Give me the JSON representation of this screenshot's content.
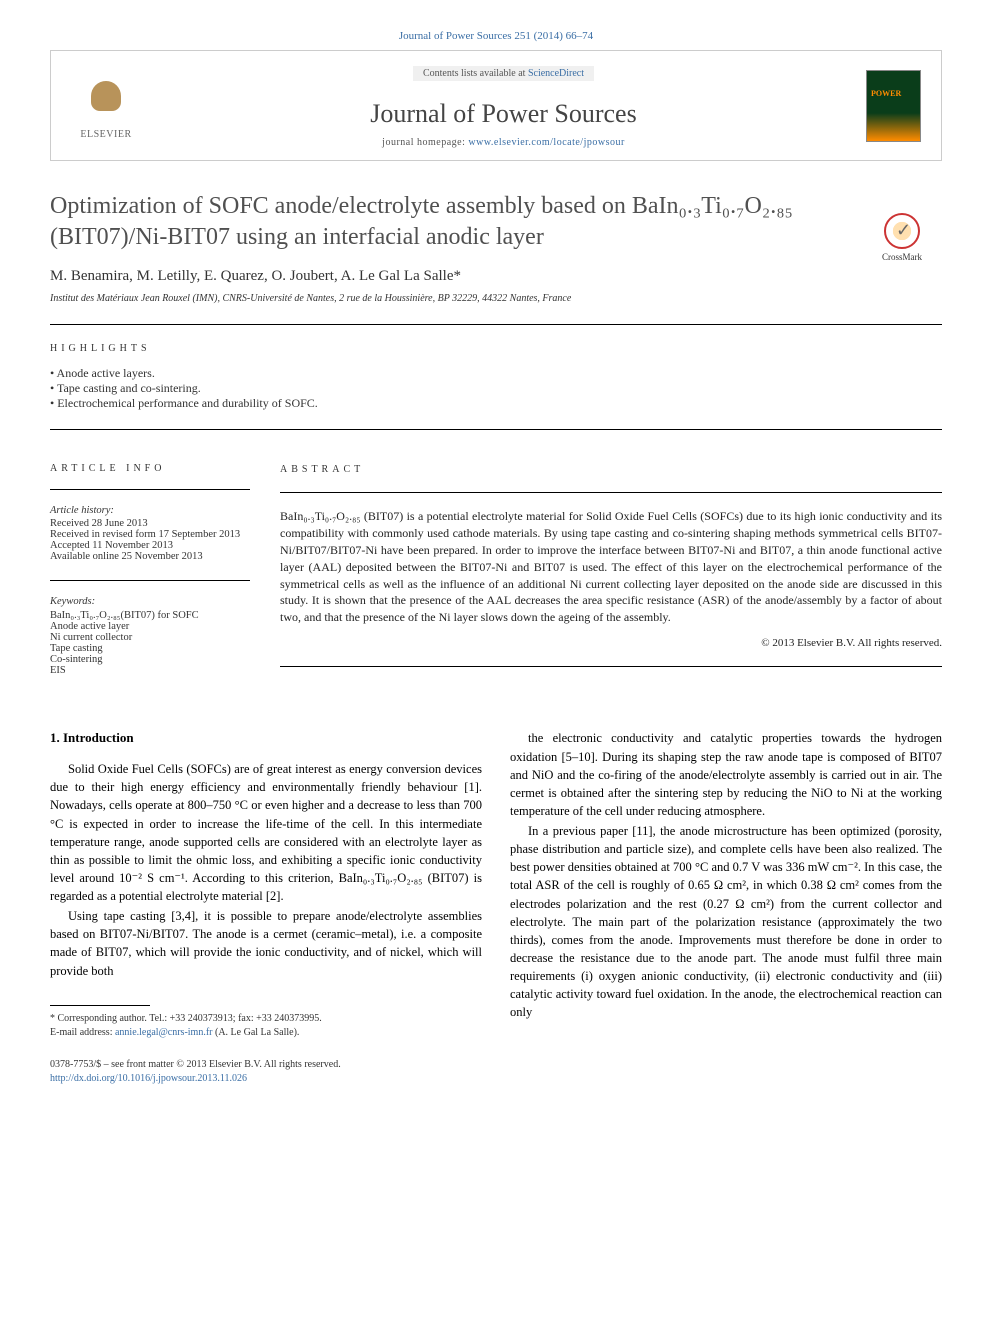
{
  "citation": "Journal of Power Sources 251 (2014) 66–74",
  "header": {
    "contents_prefix": "Contents lists available at ",
    "contents_link": "ScienceDirect",
    "journal": "Journal of Power Sources",
    "homepage_prefix": "journal homepage: ",
    "homepage": "www.elsevier.com/locate/jpowsour",
    "elsevier": "ELSEVIER"
  },
  "crossmark": "CrossMark",
  "title": "Optimization of SOFC anode/electrolyte assembly based on BaIn₀.₃Ti₀.₇O₂.₈₅ (BIT07)/Ni-BIT07 using an interfacial anodic layer",
  "authors": "M. Benamira, M. Letilly, E. Quarez, O. Joubert, A. Le Gal La Salle*",
  "affiliation": "Institut des Matériaux Jean Rouxel (IMN), CNRS-Université de Nantes, 2 rue de la Houssinière, BP 32229, 44322 Nantes, France",
  "labels": {
    "highlights": "HIGHLIGHTS",
    "article_info": "ARTICLE INFO",
    "abstract": "ABSTRACT"
  },
  "highlights": [
    "Anode active layers.",
    "Tape casting and co-sintering.",
    "Electrochemical performance and durability of SOFC."
  ],
  "article_info": {
    "history_label": "Article history:",
    "received": "Received 28 June 2013",
    "revised": "Received in revised form 17 September 2013",
    "accepted": "Accepted 11 November 2013",
    "online": "Available online 25 November 2013",
    "keywords_label": "Keywords:",
    "keywords": [
      "BaIn₀.₃Ti₀.₇O₂.₈₅(BIT07) for SOFC",
      "Anode active layer",
      "Ni current collector",
      "Tape casting",
      "Co-sintering",
      "EIS"
    ]
  },
  "abstract": "BaIn₀.₃Ti₀.₇O₂.₈₅ (BIT07) is a potential electrolyte material for Solid Oxide Fuel Cells (SOFCs) due to its high ionic conductivity and its compatibility with commonly used cathode materials. By using tape casting and co-sintering shaping methods symmetrical cells BIT07-Ni/BIT07/BIT07-Ni have been prepared. In order to improve the interface between BIT07-Ni and BIT07, a thin anode functional active layer (AAL) deposited between the BIT07-Ni and BIT07 is used. The effect of this layer on the electrochemical performance of the symmetrical cells as well as the influence of an additional Ni current collecting layer deposited on the anode side are discussed in this study. It is shown that the presence of the AAL decreases the area specific resistance (ASR) of the anode/assembly by a factor of about two, and that the presence of the Ni layer slows down the ageing of the assembly.",
  "copyright": "© 2013 Elsevier B.V. All rights reserved.",
  "body": {
    "heading": "1. Introduction",
    "col1_p1": "Solid Oxide Fuel Cells (SOFCs) are of great interest as energy conversion devices due to their high energy efficiency and environmentally friendly behaviour [1]. Nowadays, cells operate at 800–750 °C or even higher and a decrease to less than 700 °C is expected in order to increase the life-time of the cell. In this intermediate temperature range, anode supported cells are considered with an electrolyte layer as thin as possible to limit the ohmic loss, and exhibiting a specific ionic conductivity level around 10⁻² S cm⁻¹. According to this criterion, BaIn₀.₃Ti₀.₇O₂.₈₅ (BIT07) is regarded as a potential electrolyte material [2].",
    "col1_p2": "Using tape casting [3,4], it is possible to prepare anode/electrolyte assemblies based on BIT07-Ni/BIT07. The anode is a cermet (ceramic–metal), i.e. a composite made of BIT07, which will provide the ionic conductivity, and of nickel, which will provide both",
    "col2_p1": "the electronic conductivity and catalytic properties towards the hydrogen oxidation [5–10]. During its shaping step the raw anode tape is composed of BIT07 and NiO and the co-firing of the anode/electrolyte assembly is carried out in air. The cermet is obtained after the sintering step by reducing the NiO to Ni at the working temperature of the cell under reducing atmosphere.",
    "col2_p2": "In a previous paper [11], the anode microstructure has been optimized (porosity, phase distribution and particle size), and complete cells have been also realized. The best power densities obtained at 700 °C and 0.7 V was 336 mW cm⁻². In this case, the total ASR of the cell is roughly of 0.65 Ω cm², in which 0.38 Ω cm² comes from the electrodes polarization and the rest (0.27 Ω cm²) from the current collector and electrolyte. The main part of the polarization resistance (approximately the two thirds), comes from the anode. Improvements must therefore be done in order to decrease the resistance due to the anode part. The anode must fulfil three main requirements (i) oxygen anionic conductivity, (ii) electronic conductivity and (iii) catalytic activity toward fuel oxidation. In the anode, the electrochemical reaction can only"
  },
  "footnote": {
    "corresponding": "* Corresponding author. Tel.: +33 240373913; fax: +33 240373995.",
    "email_label": "E-mail address: ",
    "email": "annie.legal@cnrs-imn.fr",
    "email_suffix": " (A. Le Gal La Salle)."
  },
  "bottom": {
    "issn": "0378-7753/$ – see front matter © 2013 Elsevier B.V. All rights reserved.",
    "doi": "http://dx.doi.org/10.1016/j.jpowsour.2013.11.026"
  },
  "colors": {
    "link": "#3a6ea5",
    "text": "#333333",
    "title": "#505050"
  }
}
